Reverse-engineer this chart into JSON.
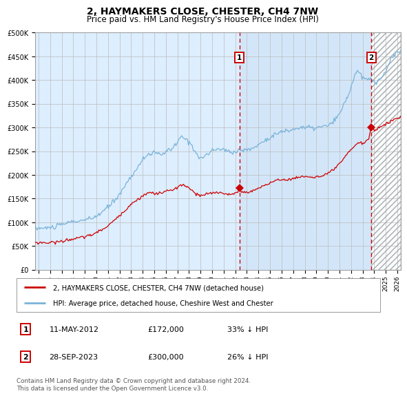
{
  "title": "2, HAYMAKERS CLOSE, CHESTER, CH4 7NW",
  "subtitle": "Price paid vs. HM Land Registry's House Price Index (HPI)",
  "title_fontsize": 10,
  "subtitle_fontsize": 8.5,
  "ylabel_ticks": [
    "£0",
    "£50K",
    "£100K",
    "£150K",
    "£200K",
    "£250K",
    "£300K",
    "£350K",
    "£400K",
    "£450K",
    "£500K"
  ],
  "ytick_values": [
    0,
    50000,
    100000,
    150000,
    200000,
    250000,
    300000,
    350000,
    400000,
    450000,
    500000
  ],
  "ylim": [
    0,
    500000
  ],
  "xlim_start": 1994.7,
  "xlim_end": 2026.3,
  "hpi_color": "#7ab3d9",
  "price_color": "#cc0000",
  "background_plot": "#ddeeff",
  "background_fig": "#ffffff",
  "grid_color": "#bbbbbb",
  "dashed_line_color": "#cc0000",
  "sale1_date": 2012.37,
  "sale1_price": 172000,
  "sale1_label": "1",
  "sale2_date": 2023.75,
  "sale2_price": 300000,
  "sale2_label": "2",
  "legend_line1": "2, HAYMAKERS CLOSE, CHESTER, CH4 7NW (detached house)",
  "legend_line2": "HPI: Average price, detached house, Cheshire West and Chester",
  "table_row1": [
    "1",
    "11-MAY-2012",
    "£172,000",
    "33% ↓ HPI"
  ],
  "table_row2": [
    "2",
    "28-SEP-2023",
    "£300,000",
    "26% ↓ HPI"
  ],
  "footnote": "Contains HM Land Registry data © Crown copyright and database right 2024.\nThis data is licensed under the Open Government Licence v3.0.",
  "xtick_years": [
    1995,
    1996,
    1997,
    1998,
    1999,
    2000,
    2001,
    2002,
    2003,
    2004,
    2005,
    2006,
    2007,
    2008,
    2009,
    2010,
    2011,
    2012,
    2013,
    2014,
    2015,
    2016,
    2017,
    2018,
    2019,
    2020,
    2021,
    2022,
    2023,
    2024,
    2025,
    2026
  ]
}
